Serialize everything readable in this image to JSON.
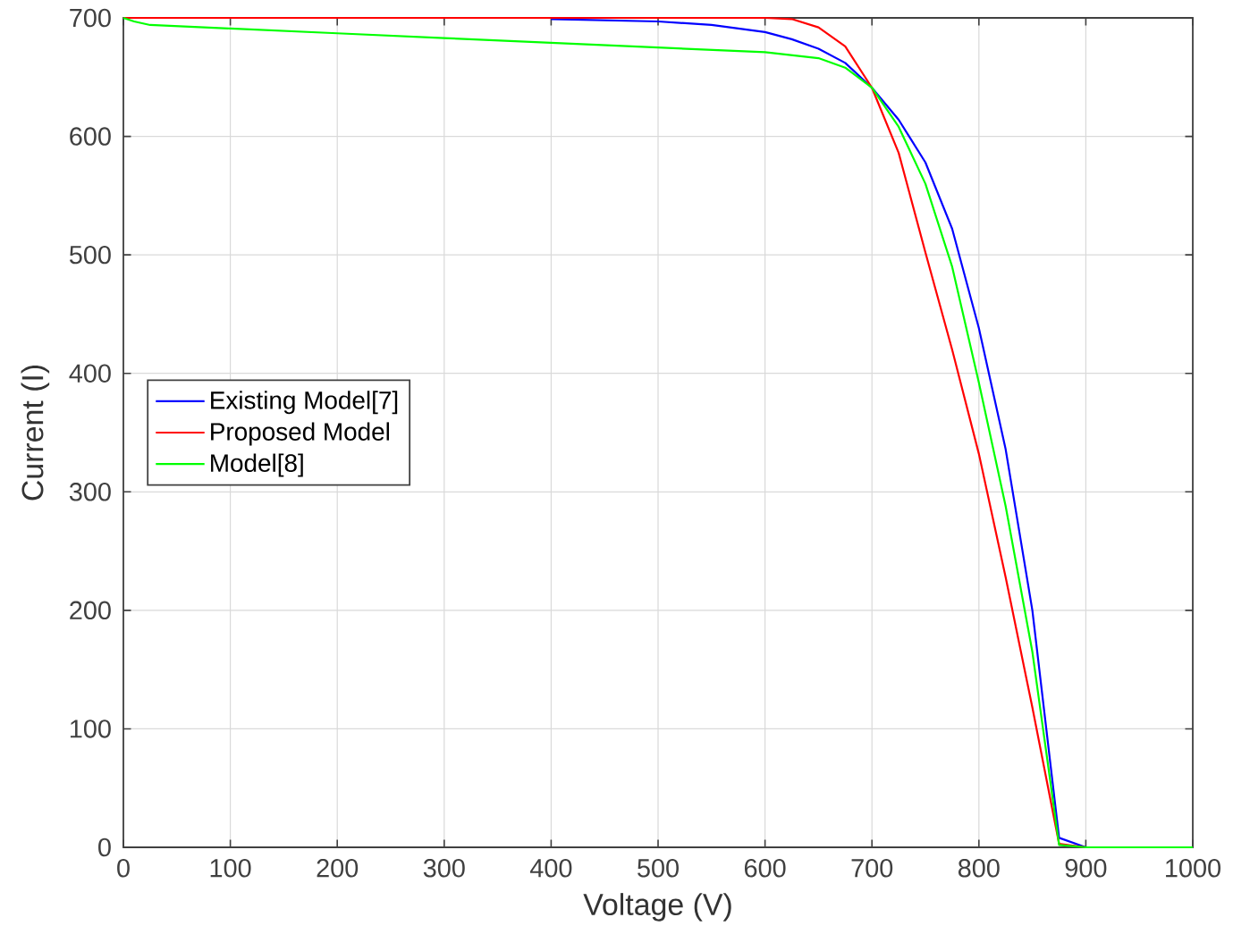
{
  "chart_data": {
    "type": "line",
    "xlabel": "Voltage (V)",
    "ylabel": "Current (I)",
    "xlim": [
      0,
      1000
    ],
    "ylim": [
      0,
      700
    ],
    "xticks": [
      0,
      100,
      200,
      300,
      400,
      500,
      600,
      700,
      800,
      900,
      1000
    ],
    "yticks": [
      0,
      100,
      200,
      300,
      400,
      500,
      600,
      700
    ],
    "grid": true,
    "legend": "left",
    "marker": "none",
    "line_style": "solid",
    "series": [
      {
        "name": "Existing Model[7]",
        "color": "#0000ff",
        "x": [
          400,
          500,
          550,
          600,
          625,
          650,
          675,
          700,
          725,
          750,
          775,
          800,
          825,
          850,
          875,
          900,
          1000
        ],
        "values": [
          699,
          697,
          694,
          688,
          682,
          674,
          662,
          641,
          614,
          578,
          522,
          438,
          336,
          200,
          8,
          0,
          0
        ]
      },
      {
        "name": "Proposed Model",
        "color": "#ff0000",
        "x": [
          0,
          600,
          625,
          650,
          675,
          700,
          725,
          750,
          775,
          800,
          825,
          850,
          875,
          900,
          1000
        ],
        "values": [
          700,
          700,
          699,
          692,
          676,
          641,
          586,
          502,
          420,
          332,
          228,
          118,
          3,
          0,
          0
        ]
      },
      {
        "name": "Model[8]",
        "color": "#00ff00",
        "x": [
          0,
          10,
          25,
          100,
          200,
          300,
          400,
          500,
          600,
          650,
          675,
          700,
          725,
          750,
          775,
          800,
          825,
          850,
          875,
          900,
          1000
        ],
        "values": [
          700,
          697,
          694,
          691,
          687,
          683,
          679,
          675,
          671,
          666,
          658,
          641,
          608,
          560,
          490,
          392,
          288,
          165,
          2,
          0,
          0
        ]
      }
    ]
  }
}
